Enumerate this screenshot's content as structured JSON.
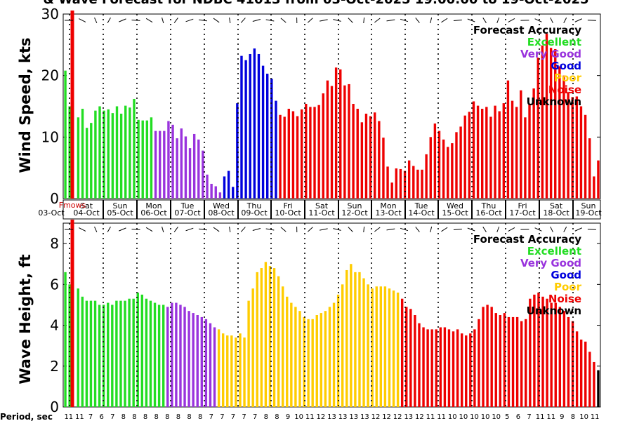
{
  "title": "& Wave Forecast for NDBC 41013 from 03-Oct-2025 19:00:00 to 19-Oct-2025",
  "colors": {
    "Excellent": "#22dd22",
    "Very Good": "#9933dd",
    "Good": "#0000dd",
    "Poor": "#ffcc00",
    "Noise": "#ee0000",
    "Unknown": "#000000"
  },
  "legend_title": "Forecast Accuracy",
  "legend": [
    "Excellent",
    "Very Good",
    "Good",
    "Poor",
    "Noise",
    "Unknown"
  ],
  "nowline_label": "Fmows",
  "period_label": "Period, sec",
  "periods": [
    "11",
    "11",
    "7",
    "6",
    "7",
    "8",
    "8",
    "8",
    "8",
    "8",
    "8",
    "8",
    "8",
    "7",
    "7",
    "7",
    "7",
    "7",
    "8",
    "8",
    "9",
    "10",
    "11",
    "12",
    "13",
    "13",
    "13",
    "13",
    "12",
    "12",
    "12",
    "13",
    "12",
    "11",
    "11",
    "10",
    "10",
    "10",
    "10",
    "10",
    "5",
    "6",
    "7",
    "11",
    "11",
    "9",
    "8",
    "10",
    "11"
  ],
  "day_labels": [
    {
      "day": "",
      "date": "03-Oct"
    },
    {
      "day": "Sat",
      "date": "04-Oct"
    },
    {
      "day": "Sun",
      "date": "05-Oct"
    },
    {
      "day": "Mon",
      "date": "06-Oct"
    },
    {
      "day": "Tue",
      "date": "07-Oct"
    },
    {
      "day": "Wed",
      "date": "08-Oct"
    },
    {
      "day": "Thu",
      "date": "09-Oct"
    },
    {
      "day": "Fri",
      "date": "10-Oct"
    },
    {
      "day": "Sat",
      "date": "11-Oct"
    },
    {
      "day": "Sun",
      "date": "12-Oct"
    },
    {
      "day": "Mon",
      "date": "13-Oct"
    },
    {
      "day": "Tue",
      "date": "14-Oct"
    },
    {
      "day": "Wed",
      "date": "15-Oct"
    },
    {
      "day": "Thu",
      "date": "16-Oct"
    },
    {
      "day": "Fri",
      "date": "17-Oct"
    },
    {
      "day": "Sat",
      "date": "18-Oct"
    },
    {
      "day": "Sun",
      "date": "19-Oct"
    }
  ],
  "chart_data": [
    {
      "type": "bar",
      "ylabel": "Wind Speed, kts",
      "ylim": [
        0,
        30
      ],
      "yticks": [
        0,
        10,
        20,
        30
      ],
      "values": [
        20.8,
        15,
        0,
        13.2,
        14.6,
        11.5,
        12.3,
        14.3,
        15,
        14.3,
        14.5,
        13.9,
        15,
        13.8,
        15.1,
        14.8,
        16.2,
        12.8,
        12.7,
        12.7,
        13.2,
        11,
        11,
        11,
        12.6,
        12,
        9.8,
        11.4,
        10.1,
        8.2,
        10.5,
        9.6,
        7.8,
        3.9,
        2.4,
        2,
        1,
        3.6,
        4.5,
        1.9,
        15.5,
        23.2,
        22.5,
        23.5,
        24.4,
        23.5,
        21.6,
        20.3,
        19.5,
        15.9,
        13.6,
        13.3,
        14.6,
        14.2,
        13.4,
        14.5,
        15.4,
        14.9,
        14.9,
        15.2,
        17.1,
        19.2,
        18.3,
        21.3,
        21,
        18.4,
        18.6,
        15.4,
        14.6,
        12.4,
        13.8,
        13.4,
        14,
        12.6,
        9.9,
        5.2,
        2.6,
        4.9,
        4.8,
        4.5,
        6.2,
        5.3,
        4.7,
        4.7,
        7.2,
        10,
        12.2,
        11,
        9.6,
        8.4,
        9,
        10.8,
        11.7,
        13.5,
        14.1,
        15.8,
        15.1,
        14.6,
        14.9,
        13.3,
        15.1,
        14.2,
        15.5,
        19.2,
        15.9,
        14.9,
        17.6,
        13.2,
        15.4,
        17.9,
        22.9,
        24.9,
        26.8,
        24.5,
        24.3,
        21.5,
        20,
        17.3,
        16.5,
        16.6,
        15,
        13.6,
        9.8,
        3.6,
        6.2
      ],
      "accuracy": [
        "Excellent",
        "Excellent",
        "Excellent",
        "Excellent",
        "Excellent",
        "Excellent",
        "Excellent",
        "Excellent",
        "Excellent",
        "Excellent",
        "Excellent",
        "Excellent",
        "Excellent",
        "Excellent",
        "Excellent",
        "Excellent",
        "Excellent",
        "Excellent",
        "Excellent",
        "Excellent",
        "Excellent",
        "Very Good",
        "Very Good",
        "Very Good",
        "Very Good",
        "Very Good",
        "Very Good",
        "Very Good",
        "Very Good",
        "Very Good",
        "Very Good",
        "Very Good",
        "Very Good",
        "Very Good",
        "Very Good",
        "Very Good",
        "Very Good",
        "Good",
        "Good",
        "Good",
        "Good",
        "Good",
        "Good",
        "Good",
        "Good",
        "Good",
        "Good",
        "Good",
        "Good",
        "Good",
        "Noise",
        "Noise",
        "Noise",
        "Noise",
        "Noise",
        "Noise",
        "Noise",
        "Noise",
        "Noise",
        "Noise",
        "Noise",
        "Noise",
        "Noise",
        "Noise",
        "Noise",
        "Noise",
        "Noise",
        "Noise",
        "Noise",
        "Noise",
        "Noise",
        "Noise",
        "Noise",
        "Noise",
        "Noise",
        "Noise",
        "Noise",
        "Noise",
        "Noise",
        "Noise",
        "Noise",
        "Noise",
        "Noise",
        "Noise",
        "Noise",
        "Noise",
        "Noise",
        "Noise",
        "Noise",
        "Noise",
        "Noise",
        "Noise",
        "Noise",
        "Noise",
        "Noise",
        "Noise",
        "Noise",
        "Noise",
        "Noise",
        "Noise",
        "Noise",
        "Noise",
        "Noise",
        "Noise",
        "Noise",
        "Noise",
        "Noise",
        "Noise",
        "Noise",
        "Noise",
        "Noise",
        "Noise",
        "Noise",
        "Noise",
        "Noise",
        "Noise",
        "Noise",
        "Noise",
        "Noise",
        "Noise",
        "Noise",
        "Noise",
        "Noise",
        "Noise",
        "Noise"
      ]
    },
    {
      "type": "bar",
      "ylabel": "Wave Height, ft",
      "ylim": [
        0,
        9
      ],
      "yticks": [
        0,
        2,
        4,
        6,
        8
      ],
      "values": [
        6.6,
        6,
        0,
        5.8,
        5.4,
        5.2,
        5.2,
        5.2,
        5,
        5,
        5.1,
        5,
        5.2,
        5.2,
        5.2,
        5.3,
        5.3,
        5.6,
        5.5,
        5.3,
        5.2,
        5.1,
        5,
        5,
        4.9,
        5.1,
        5.1,
        5,
        4.9,
        4.7,
        4.6,
        4.5,
        4.4,
        4.3,
        4.1,
        3.9,
        3.8,
        3.6,
        3.5,
        3.5,
        3.4,
        3.6,
        3.4,
        5.2,
        5.8,
        6.6,
        6.8,
        7.1,
        6.9,
        6.8,
        6.4,
        5.9,
        5.4,
        5.1,
        4.9,
        4.7,
        4.4,
        4.3,
        4.3,
        4.5,
        4.6,
        4.7,
        4.9,
        5.1,
        5.5,
        6,
        6.7,
        7,
        6.6,
        6.6,
        6.3,
        6,
        5.8,
        5.9,
        5.9,
        5.9,
        5.8,
        5.7,
        5.6,
        5.3,
        4.9,
        4.8,
        4.5,
        4.1,
        3.9,
        3.8,
        3.8,
        3.8,
        3.9,
        3.9,
        3.8,
        3.7,
        3.8,
        3.6,
        3.5,
        3.6,
        3.8,
        4.3,
        4.9,
        5,
        4.9,
        4.6,
        4.5,
        4.6,
        4.4,
        4.4,
        4.4,
        4.2,
        4.3,
        5.3,
        5.5,
        5.6,
        5.4,
        5.3,
        5.1,
        5.1,
        4.9,
        4.7,
        4.4,
        4.2,
        3.7,
        3.3,
        3.2,
        2.7,
        2.2,
        1.8
      ],
      "accuracy": [
        "Excellent",
        "Excellent",
        "Excellent",
        "Excellent",
        "Excellent",
        "Excellent",
        "Excellent",
        "Excellent",
        "Excellent",
        "Excellent",
        "Excellent",
        "Excellent",
        "Excellent",
        "Excellent",
        "Excellent",
        "Excellent",
        "Excellent",
        "Excellent",
        "Excellent",
        "Excellent",
        "Excellent",
        "Excellent",
        "Excellent",
        "Excellent",
        "Very Good",
        "Very Good",
        "Very Good",
        "Very Good",
        "Very Good",
        "Very Good",
        "Very Good",
        "Very Good",
        "Very Good",
        "Very Good",
        "Very Good",
        "Very Good",
        "Poor",
        "Poor",
        "Poor",
        "Poor",
        "Poor",
        "Poor",
        "Poor",
        "Poor",
        "Poor",
        "Poor",
        "Poor",
        "Poor",
        "Poor",
        "Poor",
        "Poor",
        "Poor",
        "Poor",
        "Poor",
        "Poor",
        "Poor",
        "Poor",
        "Poor",
        "Poor",
        "Poor",
        "Poor",
        "Poor",
        "Poor",
        "Poor",
        "Poor",
        "Poor",
        "Poor",
        "Poor",
        "Poor",
        "Poor",
        "Poor",
        "Poor",
        "Poor",
        "Poor",
        "Poor",
        "Poor",
        "Poor",
        "Poor",
        "Poor",
        "Noise",
        "Noise",
        "Noise",
        "Noise",
        "Noise",
        "Noise",
        "Noise",
        "Noise",
        "Noise",
        "Noise",
        "Noise",
        "Noise",
        "Noise",
        "Noise",
        "Noise",
        "Noise",
        "Noise",
        "Noise",
        "Noise",
        "Noise",
        "Noise",
        "Noise",
        "Noise",
        "Noise",
        "Noise",
        "Noise",
        "Noise",
        "Noise",
        "Noise",
        "Noise",
        "Noise",
        "Noise",
        "Noise",
        "Noise",
        "Noise",
        "Noise",
        "Noise",
        "Noise",
        "Noise",
        "Noise",
        "Noise",
        "Noise",
        "Noise",
        "Noise",
        "Noise",
        "Noise"
      ]
    }
  ]
}
